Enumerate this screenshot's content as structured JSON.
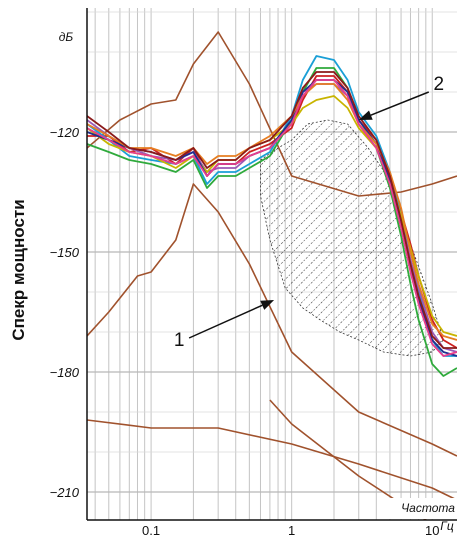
{
  "chart_data": {
    "type": "line",
    "ylabel": "Спекр мощности",
    "y_unit": "дБ",
    "xlabel": "Частота",
    "x_unit": "Гц",
    "x_scale": "log",
    "xlim": [
      0.035,
      15
    ],
    "ylim": [
      -217,
      -89
    ],
    "x_ticks": [
      0.1,
      1,
      10
    ],
    "x_tick_labels": [
      "0.1",
      "1",
      "10"
    ],
    "y_ticks": [
      -120,
      -150,
      -180,
      -210
    ],
    "y_tick_labels": [
      "-120",
      "-150",
      "-180",
      "-210"
    ],
    "grid": true,
    "annotations": [
      {
        "text": "1",
        "target_x": 0.75,
        "target_y": -162
      },
      {
        "text": "2",
        "target_x": 3.0,
        "target_y": -117
      }
    ],
    "series": [
      {
        "color": "#a0522d",
        "x": [
          0.035,
          0.06,
          0.1,
          0.15,
          0.2,
          0.3,
          0.5,
          1,
          3,
          6,
          10,
          15
        ],
        "y": [
          -124,
          -117,
          -113,
          -112,
          -103,
          -95,
          -108,
          -131,
          -136,
          -135,
          -133,
          -131
        ]
      },
      {
        "color": "#a0522d",
        "x": [
          0.035,
          0.05,
          0.08,
          0.1,
          0.15,
          0.2,
          0.3,
          0.5,
          1,
          3,
          10,
          15
        ],
        "y": [
          -171,
          -165,
          -156,
          -155,
          -147,
          -133,
          -140,
          -153,
          -175,
          -190,
          -198,
          -201
        ]
      },
      {
        "color": "#a0522d",
        "x": [
          0.035,
          0.1,
          0.3,
          1,
          3,
          10,
          15
        ],
        "y": [
          -192,
          -194,
          -194,
          -198,
          -203,
          -209,
          -212
        ]
      },
      {
        "color": "#a0522d",
        "x": [
          0.7,
          1,
          3,
          10,
          15
        ],
        "y": [
          -187,
          -193,
          -206,
          -218,
          -225
        ]
      },
      {
        "color": "#cc2020",
        "x": [
          0.035,
          0.05,
          0.07,
          0.1,
          0.15,
          0.2,
          0.25,
          0.3,
          0.4,
          0.5,
          0.7,
          1,
          1.2,
          1.5,
          2,
          2.5,
          3,
          4,
          5,
          6,
          7,
          8,
          10,
          12,
          15
        ],
        "y": [
          -121,
          -121,
          -125,
          -124,
          -128,
          -124,
          -131,
          -128,
          -128,
          -125,
          -123,
          -119,
          -112,
          -106,
          -106,
          -110,
          -117,
          -122,
          -131,
          -140,
          -148,
          -156,
          -167,
          -172,
          -174
        ]
      },
      {
        "color": "#1a9fd6",
        "x": [
          0.035,
          0.05,
          0.07,
          0.1,
          0.15,
          0.2,
          0.25,
          0.3,
          0.4,
          0.5,
          0.7,
          1,
          1.2,
          1.5,
          2,
          2.5,
          3,
          4,
          5,
          6,
          7,
          8,
          10,
          12,
          15
        ],
        "y": [
          -118,
          -122,
          -126,
          -127,
          -128,
          -126,
          -133,
          -130,
          -130,
          -128,
          -125,
          -116,
          -107,
          -101,
          -102,
          -107,
          -115,
          -121,
          -130,
          -141,
          -152,
          -160,
          -172,
          -176,
          -176
        ]
      },
      {
        "color": "#2faa3c",
        "x": [
          0.035,
          0.05,
          0.07,
          0.1,
          0.15,
          0.2,
          0.25,
          0.3,
          0.4,
          0.5,
          0.7,
          1,
          1.2,
          1.5,
          2,
          2.5,
          3,
          4,
          5,
          6,
          7,
          8,
          10,
          12,
          15
        ],
        "y": [
          -123,
          -125,
          -127,
          -128,
          -130,
          -127,
          -134,
          -131,
          -131,
          -129,
          -126,
          -117,
          -110,
          -104,
          -104,
          -109,
          -118,
          -124,
          -134,
          -146,
          -158,
          -167,
          -178,
          -181,
          -179
        ]
      },
      {
        "color": "#9b59b6",
        "x": [
          0.035,
          0.05,
          0.07,
          0.1,
          0.15,
          0.2,
          0.25,
          0.3,
          0.4,
          0.5,
          0.7,
          1,
          1.2,
          1.5,
          2,
          2.5,
          3,
          4,
          5,
          6,
          7,
          8,
          10,
          12,
          15
        ],
        "y": [
          -117,
          -121,
          -124,
          -126,
          -127,
          -125,
          -130,
          -129,
          -129,
          -126,
          -124,
          -117,
          -110,
          -108,
          -108,
          -111,
          -118,
          -124,
          -131,
          -142,
          -152,
          -159,
          -170,
          -174,
          -175
        ]
      },
      {
        "color": "#c8b400",
        "x": [
          0.035,
          0.05,
          0.07,
          0.1,
          0.15,
          0.2,
          0.25,
          0.3,
          0.4,
          0.5,
          0.7,
          1,
          1.2,
          1.5,
          2,
          2.5,
          3,
          4,
          5,
          6,
          7,
          8,
          10,
          12,
          15
        ],
        "y": [
          -119,
          -123,
          -125,
          -126,
          -129,
          -126,
          -130,
          -127,
          -127,
          -124,
          -122,
          -118,
          -114,
          -112,
          -111,
          -114,
          -119,
          -124,
          -132,
          -141,
          -149,
          -156,
          -166,
          -170,
          -171
        ]
      },
      {
        "color": "#1f2f8f",
        "x": [
          0.035,
          0.05,
          0.07,
          0.1,
          0.15,
          0.2,
          0.25,
          0.3,
          0.4,
          0.5,
          0.7,
          1,
          1.2,
          1.5,
          2,
          2.5,
          3,
          4,
          5,
          6,
          7,
          8,
          10,
          12,
          15
        ],
        "y": [
          -120,
          -122,
          -124,
          -125,
          -127,
          -125,
          -131,
          -128,
          -128,
          -126,
          -124,
          -117,
          -110,
          -107,
          -107,
          -110,
          -117,
          -123,
          -132,
          -143,
          -154,
          -162,
          -172,
          -175,
          -176
        ]
      },
      {
        "color": "#e67e22",
        "x": [
          0.035,
          0.05,
          0.07,
          0.1,
          0.15,
          0.2,
          0.25,
          0.3,
          0.4,
          0.5,
          0.7,
          1,
          1.2,
          1.5,
          2,
          2.5,
          3,
          4,
          5,
          6,
          7,
          8,
          10,
          12,
          15
        ],
        "y": [
          -118,
          -121,
          -124,
          -124,
          -126,
          -124,
          -128,
          -126,
          -126,
          -124,
          -121,
          -116,
          -111,
          -108,
          -108,
          -112,
          -118,
          -123,
          -130,
          -139,
          -150,
          -158,
          -168,
          -171,
          -172
        ]
      },
      {
        "color": "#e83e8c",
        "x": [
          0.035,
          0.05,
          0.07,
          0.1,
          0.15,
          0.2,
          0.25,
          0.3,
          0.4,
          0.5,
          0.7,
          1,
          1.2,
          1.5,
          2,
          2.5,
          3,
          4,
          5,
          6,
          7,
          8,
          10,
          12,
          15
        ],
        "y": [
          -119,
          -122,
          -125,
          -126,
          -128,
          -126,
          -131,
          -128,
          -128,
          -126,
          -124,
          -118,
          -111,
          -107,
          -107,
          -111,
          -118,
          -124,
          -133,
          -144,
          -155,
          -163,
          -173,
          -176,
          -175
        ]
      },
      {
        "color": "#8b1a1a",
        "x": [
          0.035,
          0.05,
          0.07,
          0.1,
          0.15,
          0.2,
          0.25,
          0.3,
          0.4,
          0.5,
          0.7,
          1,
          1.2,
          1.5,
          2,
          2.5,
          3,
          4,
          5,
          6,
          7,
          8,
          10,
          12,
          15
        ],
        "y": [
          -116,
          -120,
          -124,
          -125,
          -127,
          -124,
          -129,
          -127,
          -127,
          -124,
          -122,
          -116,
          -109,
          -105,
          -105,
          -109,
          -116,
          -122,
          -131,
          -142,
          -153,
          -161,
          -171,
          -174,
          -174
        ]
      }
    ],
    "hatched_region": {
      "upper": {
        "x": [
          0.6,
          0.8,
          1,
          1.3,
          1.8,
          2.5,
          3.5,
          5,
          7,
          10,
          12
        ],
        "y": [
          -127,
          -124,
          -122,
          -118,
          -117,
          -118,
          -124,
          -132,
          -148,
          -163,
          -172
        ]
      },
      "lower": {
        "x": [
          0.6,
          0.7,
          0.9,
          1.2,
          1.6,
          2.2,
          3,
          4.5,
          7,
          10,
          12
        ],
        "y": [
          -136,
          -147,
          -159,
          -164,
          -167,
          -170,
          -172,
          -175,
          -176,
          -175,
          -172
        ]
      }
    }
  }
}
